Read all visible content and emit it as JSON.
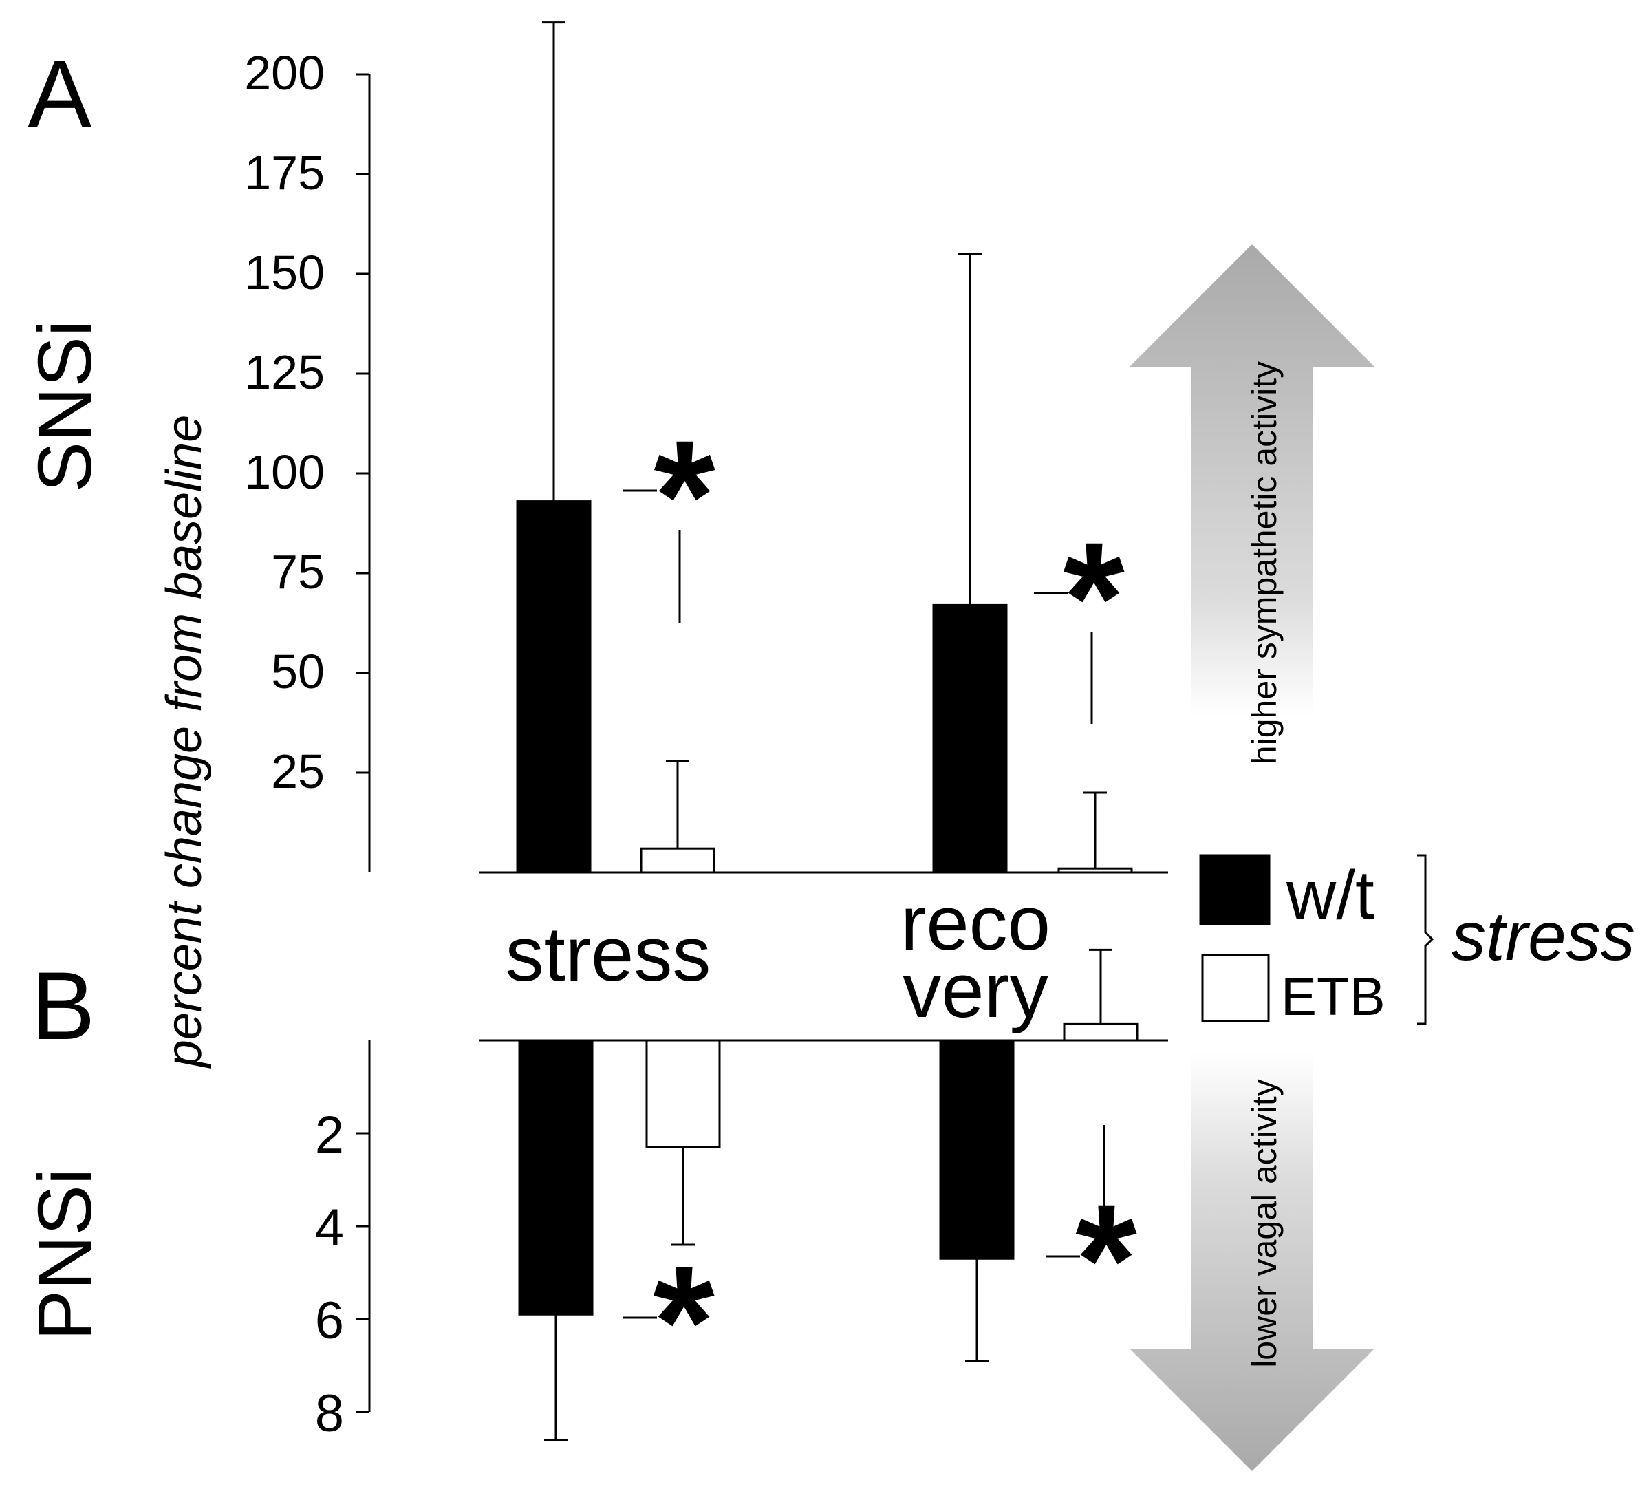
{
  "chart_data": [
    {
      "panel": "A",
      "type": "bar",
      "ylabel_side": "SNSi",
      "shared_axis_title": "percent change from baseline",
      "categories": [
        "stress",
        "reco very"
      ],
      "series": [
        {
          "name": "w/t",
          "values": [
            93,
            67
          ],
          "error_high": [
            213,
            155
          ]
        },
        {
          "name": "ETB",
          "values": [
            6,
            1
          ],
          "error_high": [
            28,
            20
          ]
        }
      ],
      "yticks": [
        "200",
        "175",
        "150",
        "125",
        "100",
        "75",
        "50",
        "25"
      ],
      "ylim": [
        0,
        200
      ],
      "significance": [
        "*",
        "*"
      ],
      "arrow_label": "higher sympathetic activity"
    },
    {
      "panel": "B",
      "type": "bar",
      "ylabel_side": "PNSi",
      "categories": [
        "stress",
        "reco very"
      ],
      "axis_direction": "inverted (values increase downward)",
      "series": [
        {
          "name": "w/t",
          "values": [
            5.9,
            4.7
          ],
          "error_high": [
            8.6,
            6.9
          ]
        },
        {
          "name": "ETB",
          "values": [
            2.3,
            -0.35
          ],
          "error_high": [
            4.4,
            -1.95
          ]
        }
      ],
      "yticks": [
        "2",
        "4",
        "6",
        "8"
      ],
      "ylim": [
        0,
        8
      ],
      "significance": [
        "*",
        "*"
      ],
      "arrow_label": "lower vagal activity"
    }
  ],
  "labels": {
    "panel_a": "A",
    "panel_b": "B",
    "snsi": "SNSi",
    "pnsi": "PNSi",
    "axis_title": "percent change from baseline",
    "cat_stress": "stress",
    "cat_recovery_1": "reco",
    "cat_recovery_2": "very",
    "legend_wt": "w/t",
    "legend_etb": "ETB",
    "legend_group": "stress",
    "arrow_up": "higher sympathetic activity",
    "arrow_down": "lower vagal activity",
    "star": "*"
  },
  "colors": {
    "wt_fill": "#000000",
    "etb_fill": "#ffffff",
    "arrow_dark": "#a9a9a9",
    "arrow_light": "#ffffff"
  }
}
